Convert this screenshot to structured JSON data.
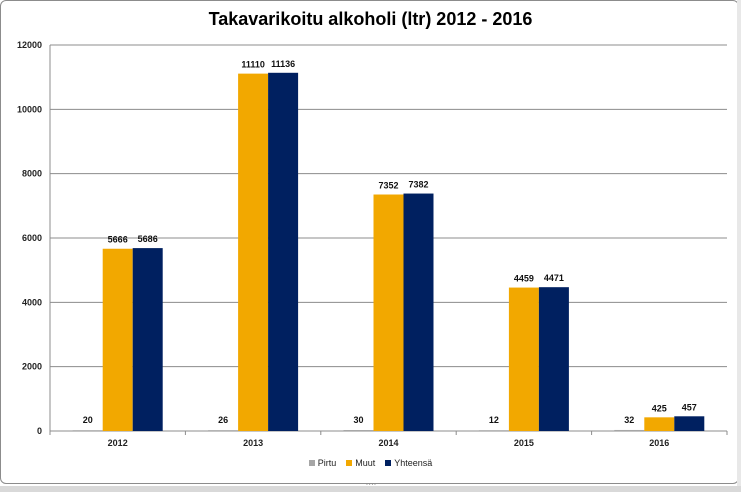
{
  "chart_data": {
    "type": "bar",
    "title": "Takavarikoitu alkoholi (ltr) 2012 - 2016",
    "xlabel": "",
    "ylabel": "",
    "categories": [
      "2012",
      "2013",
      "2014",
      "2015",
      "2016"
    ],
    "series": [
      {
        "name": "Pirtu",
        "values": [
          20,
          26,
          30,
          12,
          32
        ],
        "color": "#a6a6a6"
      },
      {
        "name": "Muut",
        "values": [
          5666,
          11110,
          7352,
          4459,
          425
        ],
        "color": "#f2a800"
      },
      {
        "name": "Yhteensä",
        "values": [
          5686,
          11136,
          7382,
          4471,
          457
        ],
        "color": "#002060"
      }
    ],
    "ylim": [
      0,
      12000
    ],
    "yticks": [
      "0",
      "2000",
      "4000",
      "6000",
      "8000",
      "10000",
      "12000"
    ],
    "grid": true,
    "legend_position": "bottom",
    "data_labels": true
  }
}
